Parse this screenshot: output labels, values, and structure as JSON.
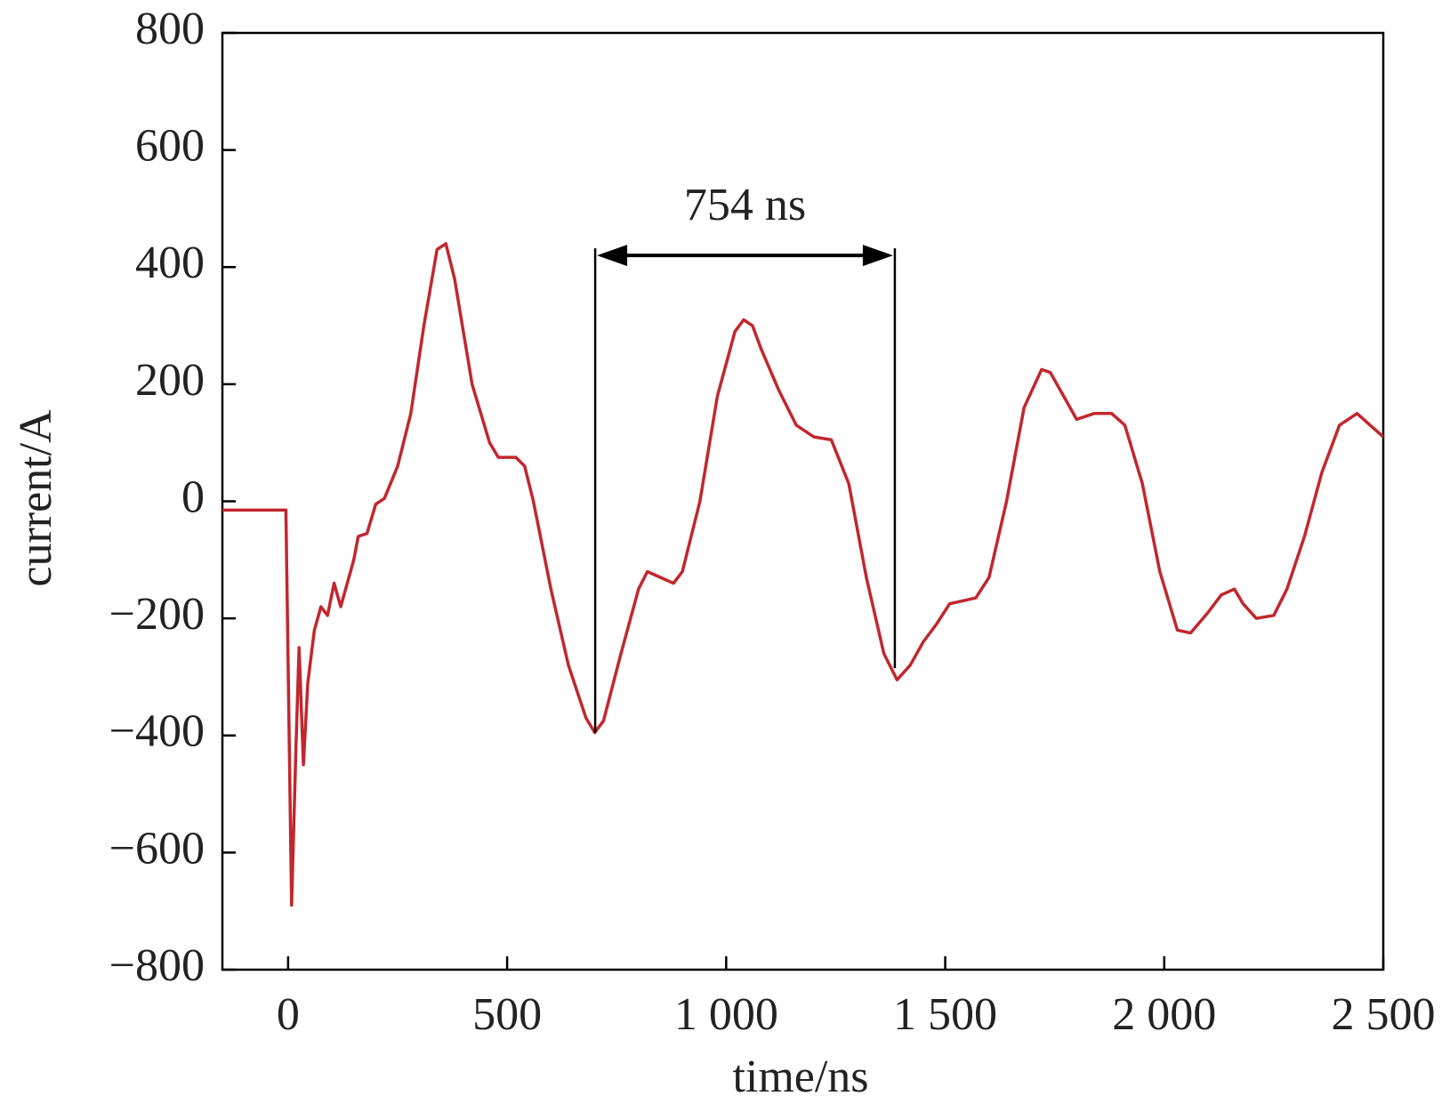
{
  "chart_data": {
    "type": "line",
    "x_label": "time/ns",
    "y_label": "current/A",
    "color": "#c1272d",
    "xlim": [
      -150,
      2500
    ],
    "ylim": [
      -800,
      800
    ],
    "xticks": [
      0,
      500,
      {
        "value": 1000,
        "label": "1 000"
      },
      {
        "value": 1500,
        "label": "1 500"
      },
      {
        "value": 2000,
        "label": "2 000"
      },
      {
        "value": 2500,
        "label": "2 500"
      }
    ],
    "yticks": [
      {
        "value": -800,
        "label": "−800"
      },
      {
        "value": -600,
        "label": "−600"
      },
      {
        "value": -400,
        "label": "−400"
      },
      {
        "value": -200,
        "label": "−200"
      },
      0,
      200,
      400,
      600,
      800
    ],
    "x": [
      -150,
      -5,
      8,
      18,
      25,
      35,
      45,
      60,
      75,
      90,
      105,
      120,
      150,
      160,
      180,
      200,
      220,
      250,
      280,
      310,
      340,
      360,
      380,
      420,
      460,
      480,
      520,
      540,
      560,
      600,
      640,
      680,
      700,
      720,
      760,
      800,
      820,
      850,
      880,
      900,
      940,
      980,
      1020,
      1040,
      1060,
      1080,
      1120,
      1160,
      1200,
      1240,
      1280,
      1320,
      1360,
      1390,
      1420,
      1450,
      1480,
      1510,
      1540,
      1570,
      1600,
      1640,
      1680,
      1720,
      1740,
      1770,
      1800,
      1840,
      1880,
      1910,
      1950,
      1990,
      2030,
      2060,
      2100,
      2130,
      2160,
      2180,
      2210,
      2250,
      2280,
      2320,
      2360,
      2400,
      2440,
      2470,
      2500
    ],
    "values": [
      -15,
      -15,
      -690,
      -420,
      -250,
      -450,
      -310,
      -220,
      -180,
      -195,
      -140,
      -180,
      -100,
      -60,
      -55,
      -5,
      5,
      60,
      150,
      300,
      430,
      440,
      380,
      200,
      100,
      75,
      75,
      60,
      0,
      -150,
      -280,
      -370,
      -395,
      -375,
      -260,
      -150,
      -120,
      -130,
      -140,
      -120,
      0,
      180,
      290,
      310,
      300,
      260,
      190,
      130,
      110,
      105,
      30,
      -130,
      -260,
      -305,
      -280,
      -240,
      -210,
      -175,
      -170,
      -165,
      -130,
      0,
      160,
      225,
      220,
      180,
      140,
      150,
      150,
      130,
      30,
      -120,
      -220,
      -225,
      -190,
      -160,
      -150,
      -175,
      -200,
      -195,
      -150,
      -60,
      50,
      130,
      150,
      130,
      110
    ],
    "annotation": {
      "text": "754 ns",
      "x_start": 701,
      "x_end": 1385,
      "y": 420,
      "y_ends": [
        -395,
        -285
      ]
    }
  }
}
